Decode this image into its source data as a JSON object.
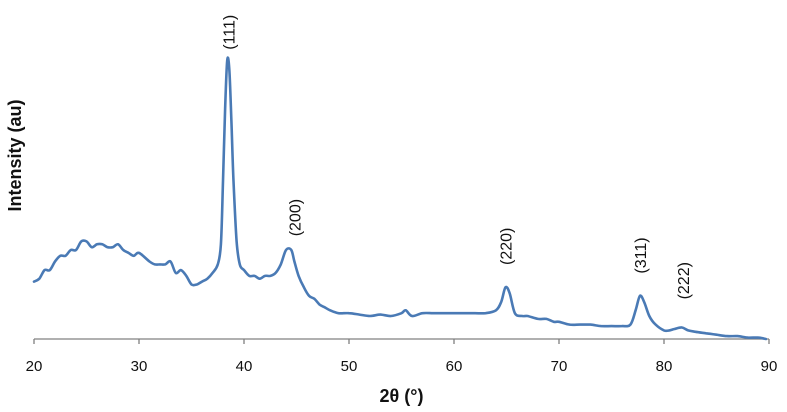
{
  "chart_data": {
    "type": "line",
    "title": "",
    "xlabel": "2θ (°)",
    "ylabel": "Intensity (au)",
    "xlim": [
      20,
      90
    ],
    "ylim": [
      0,
      100
    ],
    "x_ticks": [
      20,
      30,
      40,
      50,
      60,
      70,
      80,
      90
    ],
    "grid": false,
    "legend": "none",
    "line_color": "#4a7ab5",
    "series": [
      {
        "x": [
          20.0,
          20.5,
          21.0,
          21.5,
          22.0,
          22.5,
          23.0,
          23.5,
          24.0,
          24.5,
          25.0,
          25.5,
          26.0,
          26.5,
          27.0,
          27.5,
          28.0,
          28.5,
          29.0,
          29.5,
          30.0,
          31.0,
          31.5,
          32.0,
          32.5,
          33.0,
          33.5,
          34.0,
          34.5,
          35.0,
          35.5,
          36.0,
          36.5,
          37.0,
          37.5,
          37.8,
          38.0,
          38.2,
          38.4,
          38.6,
          38.8,
          39.0,
          39.3,
          39.6,
          40.0,
          40.5,
          41.0,
          41.5,
          42.0,
          42.5,
          43.0,
          43.5,
          44.0,
          44.5,
          44.8,
          45.2,
          45.7,
          46.2,
          46.7,
          47.2,
          47.7,
          48.2,
          49.0,
          50.0,
          51.0,
          52.0,
          53.0,
          54.0,
          55.0,
          55.4,
          56.0,
          57.0,
          58.0,
          59.0,
          60.0,
          61.0,
          62.0,
          63.0,
          64.0,
          64.5,
          64.9,
          65.3,
          65.8,
          66.5,
          67.0,
          68.0,
          68.8,
          69.5,
          70.0,
          71.0,
          72.0,
          73.0,
          74.0,
          75.0,
          76.0,
          76.8,
          77.3,
          77.7,
          78.1,
          78.6,
          79.2,
          80.0,
          80.5,
          81.0,
          81.7,
          82.3,
          83.0,
          84.0,
          85.0,
          86.0,
          87.0,
          88.0,
          89.0,
          89.7
        ],
        "y": [
          20,
          21,
          24,
          24,
          27,
          29,
          29,
          31,
          31,
          34,
          34,
          32,
          33,
          33,
          32,
          32,
          33,
          31,
          30,
          29,
          30,
          27,
          26,
          26,
          26,
          27,
          23,
          24,
          22,
          19,
          19,
          20,
          21,
          23,
          26,
          33,
          55,
          80,
          97,
          94,
          76,
          55,
          34,
          26,
          24,
          22,
          22,
          21,
          22,
          22,
          23,
          26,
          31,
          31,
          27,
          22,
          18,
          15,
          14,
          12,
          11,
          10,
          9,
          9,
          8.5,
          8,
          8.5,
          8,
          9,
          10,
          8,
          9,
          9,
          9,
          9,
          9,
          9,
          9,
          10,
          13,
          18,
          16,
          9,
          8,
          8,
          7,
          7,
          6,
          6,
          5,
          5,
          5,
          4.5,
          4.5,
          4.5,
          5,
          10,
          15,
          13,
          8,
          5,
          3,
          3,
          3.5,
          4,
          3,
          2.5,
          2,
          1.5,
          1,
          1,
          0.5,
          0.5,
          0
        ]
      }
    ],
    "annotations": [
      {
        "text": "(111)",
        "x": 38.5,
        "y": 98
      },
      {
        "text": "(200)",
        "x": 44.8,
        "y": 33
      },
      {
        "text": "(220)",
        "x": 64.9,
        "y": 23
      },
      {
        "text": "(311)",
        "x": 77.7,
        "y": 20
      },
      {
        "text": "(222)",
        "x": 81.8,
        "y": 11
      }
    ]
  }
}
